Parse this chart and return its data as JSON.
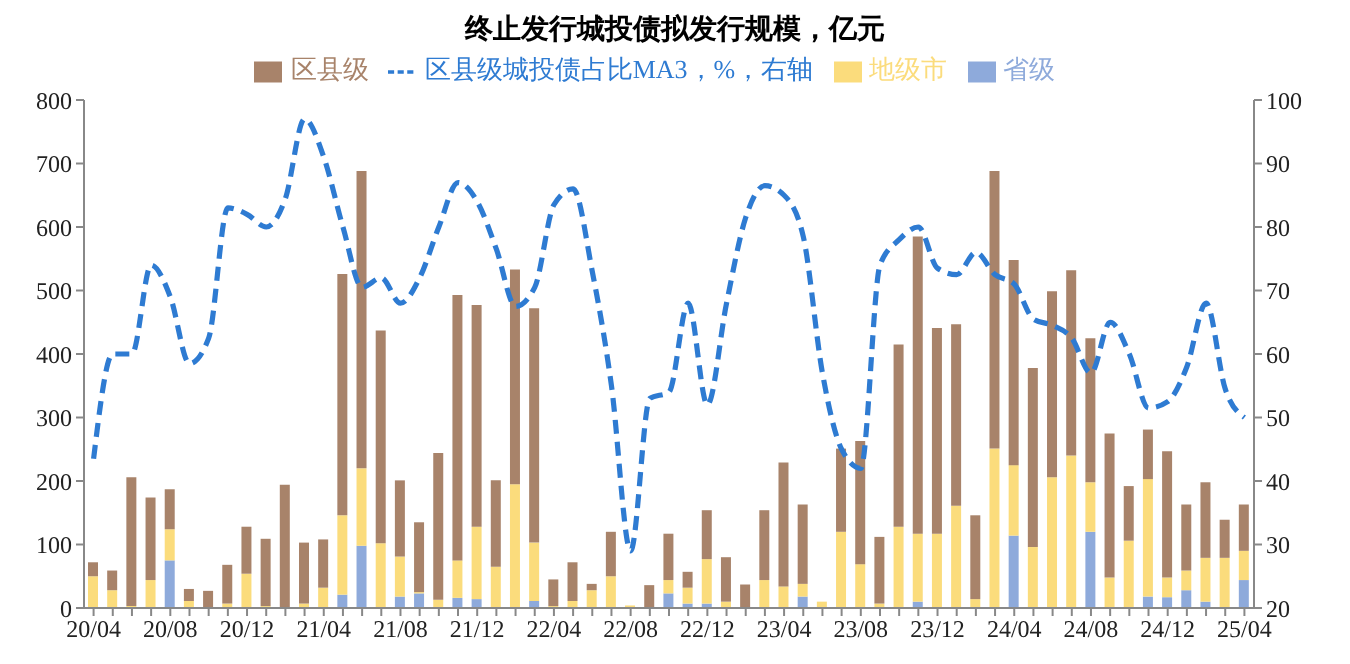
{
  "chart_data": {
    "type": "bar",
    "title": "终止发行城投债拟发行规模，亿元",
    "stacked": true,
    "legend": "top",
    "marker": "none",
    "categories": [
      "20/04",
      null,
      null,
      null,
      "20/08",
      null,
      null,
      null,
      "20/12",
      null,
      null,
      null,
      "21/04",
      null,
      null,
      null,
      "21/08",
      null,
      null,
      null,
      "21/12",
      null,
      null,
      null,
      "22/04",
      null,
      null,
      null,
      "22/08",
      null,
      null,
      null,
      "22/12",
      null,
      null,
      null,
      "23/04",
      null,
      null,
      null,
      "23/08",
      null,
      null,
      null,
      "23/12",
      null,
      null,
      null,
      "24/04",
      null,
      null,
      null,
      "24/08",
      null,
      null,
      null,
      "24/12",
      null,
      null,
      null,
      "25/04"
    ],
    "ylim": [
      0,
      800
    ],
    "yticks": [
      0,
      100,
      200,
      300,
      400,
      500,
      600,
      700,
      800
    ],
    "y2lim": [
      20,
      100
    ],
    "y2ticks": [
      20,
      30,
      40,
      50,
      60,
      70,
      80,
      90,
      100
    ],
    "series": [
      {
        "name": "省级",
        "color": "#8eaadb",
        "values": [
          0,
          0,
          0,
          0,
          75,
          0,
          0,
          0,
          0,
          0,
          0,
          0,
          0,
          21,
          98,
          0,
          18,
          23,
          0,
          16,
          14,
          0,
          0,
          11,
          0,
          0,
          0,
          0,
          0,
          0,
          23,
          7,
          7,
          0,
          0,
          0,
          0,
          18,
          0,
          0,
          0,
          0,
          0,
          10,
          0,
          0,
          0,
          0,
          114,
          0,
          0,
          0,
          120,
          0,
          0,
          18,
          17,
          28,
          10,
          0,
          44
        ]
      },
      {
        "name": "地级市",
        "color": "#fbdc7c",
        "values": [
          50,
          28,
          3,
          44,
          49,
          11,
          0,
          7,
          54,
          3,
          0,
          7,
          32,
          125,
          122,
          102,
          63,
          2,
          13,
          59,
          114,
          65,
          195,
          92,
          3,
          11,
          28,
          50,
          4,
          0,
          21,
          25,
          70,
          10,
          0,
          44,
          34,
          20,
          10,
          120,
          69,
          7,
          128,
          107,
          117,
          161,
          14,
          251,
          111,
          96,
          206,
          240,
          78,
          48,
          106,
          185,
          31,
          31,
          69,
          79,
          46
        ]
      },
      {
        "name": "区县级",
        "color": "#a8836a",
        "values": [
          22,
          31,
          203,
          130,
          63,
          19,
          27,
          61,
          74,
          106,
          194,
          96,
          76,
          380,
          468,
          335,
          120,
          110,
          231,
          418,
          349,
          136,
          338,
          369,
          42,
          61,
          10,
          70,
          0,
          36,
          73,
          25,
          77,
          70,
          37,
          110,
          195,
          125,
          0,
          131,
          194,
          105,
          287,
          468,
          324,
          286,
          132,
          437,
          323,
          282,
          293,
          292,
          227,
          227,
          86,
          78,
          199,
          104,
          119,
          60,
          73
        ]
      },
      {
        "name": "区县级城投债占比MA3，%，右轴",
        "type": "line",
        "axis": "y2",
        "line_style": "dashed",
        "color": "#2e7bd2",
        "values": [
          43.5,
          60,
          60,
          74,
          69,
          58.5,
          62.5,
          83,
          82,
          80,
          84.5,
          97,
          91,
          80,
          70.5,
          72,
          68,
          72,
          80,
          87,
          84,
          76.5,
          67.5,
          70.5,
          83.5,
          86,
          73,
          55,
          29,
          53,
          54,
          68,
          52,
          68,
          81.5,
          86.5,
          85,
          78.5,
          57,
          45,
          42,
          74,
          78,
          80,
          73.5,
          72.5,
          76,
          72.5,
          71,
          65.5,
          64.5,
          62.5,
          57,
          65,
          60,
          51.5,
          52.5,
          58,
          68,
          54.5,
          50
        ]
      }
    ]
  }
}
